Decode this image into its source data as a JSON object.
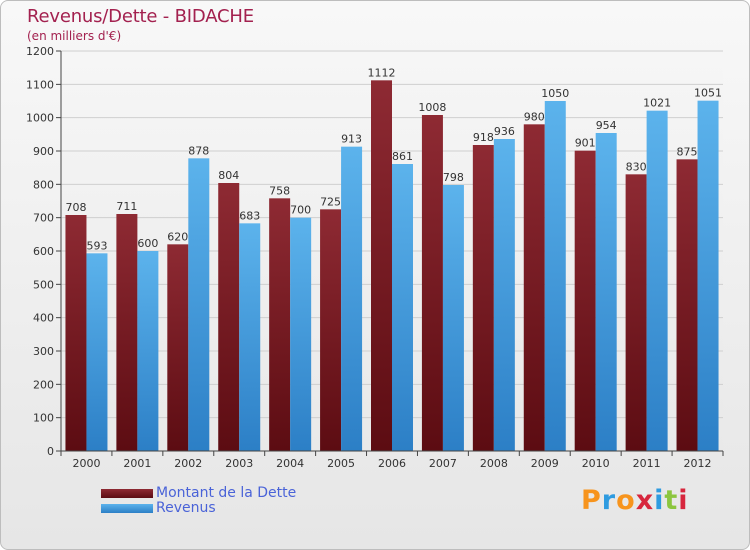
{
  "title": "Revenus/Dette - BIDACHE",
  "subtitle": "(en milliers d'€)",
  "brand": {
    "letters": [
      "P",
      "r",
      "o",
      "x",
      "i",
      "t",
      "i"
    ],
    "colors": [
      "#f7941d",
      "#2e9be0",
      "#f7941d",
      "#d7263d",
      "#2e9be0",
      "#8cc63f",
      "#d7263d"
    ]
  },
  "chart_data": {
    "type": "bar",
    "title": "Revenus/Dette - BIDACHE",
    "ylabel": "(en milliers d'€)",
    "xlabel": "",
    "ylim": [
      0,
      1200
    ],
    "yticks": [
      0,
      100,
      200,
      300,
      400,
      500,
      600,
      700,
      800,
      900,
      1000,
      1100,
      1200
    ],
    "grid": true,
    "legend_position": "bottom-left",
    "categories": [
      "2000",
      "2001",
      "2002",
      "2003",
      "2004",
      "2005",
      "2006",
      "2007",
      "2008",
      "2009",
      "2010",
      "2011",
      "2012"
    ],
    "series": [
      {
        "name": "Montant de la Dette",
        "color": "#7a1c22",
        "values": [
          708,
          711,
          620,
          804,
          758,
          725,
          1112,
          1008,
          918,
          980,
          901,
          830,
          875
        ]
      },
      {
        "name": "Revenus",
        "color": "#4aa3e2",
        "values": [
          593,
          600,
          878,
          683,
          700,
          913,
          861,
          798,
          936,
          1050,
          954,
          1021,
          1051
        ]
      }
    ]
  }
}
